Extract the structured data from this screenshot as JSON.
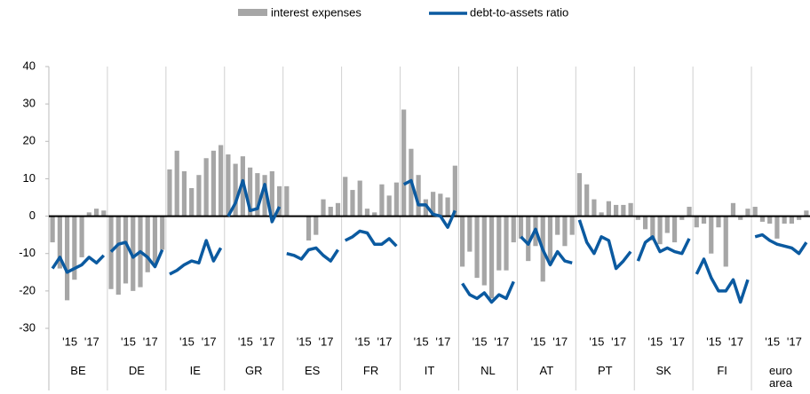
{
  "chart_data": {
    "type": "bar-line",
    "groups": [
      "BE",
      "DE",
      "IE",
      "GR",
      "ES",
      "FR",
      "IT",
      "NL",
      "AT",
      "PT",
      "SK",
      "FI",
      "euro area"
    ],
    "categories": [
      null,
      null,
      "'15",
      null,
      null,
      "'17",
      null,
      null
    ],
    "ylim": [
      -30,
      40
    ],
    "yticks": [
      -30,
      -20,
      -10,
      0,
      10,
      20,
      30,
      40
    ],
    "series": [
      {
        "name": "interest expenses",
        "type": "bar",
        "color": "#a6a6a6",
        "values": [
          [
            -7,
            -14,
            -22.5,
            -17,
            -11,
            1,
            2,
            1.5
          ],
          [
            -19.5,
            -21,
            -18,
            -20,
            -19,
            -15,
            -13,
            -9
          ],
          [
            12.5,
            17.5,
            12,
            7.5,
            11,
            15.5,
            17.5,
            19
          ],
          [
            16.5,
            14,
            16,
            13,
            11.5,
            11,
            12,
            8
          ],
          [
            8,
            null,
            null,
            -6.5,
            -5,
            4.5,
            2.5,
            3.5
          ],
          [
            10.5,
            7,
            9.5,
            2,
            1,
            8.5,
            5.5,
            9
          ],
          [
            28.5,
            18,
            11,
            4.5,
            6.5,
            6,
            5,
            13.5
          ],
          [
            -13.5,
            -9.5,
            -16.5,
            -18.5,
            -22,
            -14.5,
            -14.5,
            -7
          ],
          [
            -6,
            -12,
            -8,
            -17.5,
            -13,
            -5,
            -8,
            -5
          ],
          [
            11.5,
            8.5,
            4.5,
            1,
            4,
            3,
            3,
            3.5
          ],
          [
            -1,
            -3.5,
            -6.5,
            -7.5,
            -4.5,
            -7,
            -1,
            2.5
          ],
          [
            -3,
            -2,
            -10,
            -3,
            -13.5,
            3.5,
            -1,
            2
          ],
          [
            2.5,
            -1.5,
            -2,
            -6,
            -2,
            -2,
            -1,
            1.5
          ]
        ]
      },
      {
        "name": "debt-to-assets ratio",
        "type": "line",
        "color": "#0b5aa0",
        "values": [
          [
            -14,
            -11,
            -15,
            -14,
            -13,
            -11,
            -12.5,
            -10.5
          ],
          [
            -9.5,
            -7.5,
            -7,
            -11,
            -9.5,
            -11,
            -13.5,
            -9
          ],
          [
            -15.5,
            -14.5,
            -13,
            -12,
            -12.5,
            -6.5,
            -12,
            -8.5
          ],
          [
            0,
            3.5,
            9.5,
            1.5,
            2,
            8.5,
            -1.5,
            2.5
          ],
          [
            -10,
            -10.5,
            -11.5,
            -9,
            -8.5,
            -10.5,
            -12,
            -9
          ],
          [
            -6.5,
            -5.5,
            -4,
            -4.5,
            -7.5,
            -7.5,
            -6,
            -8
          ],
          [
            8.5,
            9.5,
            3,
            3,
            0.5,
            0,
            -3,
            1.5
          ],
          [
            -18,
            -21,
            -22,
            -20.5,
            -23,
            -21,
            -22,
            -17.5
          ],
          [
            -5.5,
            -7.5,
            -3.5,
            -9,
            -13,
            -9.5,
            -12,
            -12.5
          ],
          [
            -1,
            -7,
            -10,
            -5.5,
            -6.5,
            -14,
            -12,
            -9.5
          ],
          [
            -12,
            -7,
            -5.5,
            -9.5,
            -8.5,
            -9.5,
            -10,
            -6
          ],
          [
            -15.5,
            -11.5,
            -16.5,
            -20,
            -20,
            -17,
            -23,
            -17
          ],
          [
            -5.5,
            -5,
            -6.5,
            -7.5,
            -8,
            -8.5,
            -10,
            -7
          ]
        ]
      }
    ]
  }
}
